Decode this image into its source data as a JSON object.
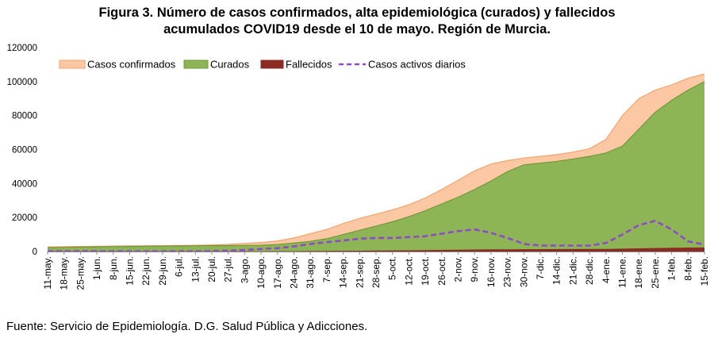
{
  "title_line1": "Figura 3. Número de casos confirmados, alta epidemiológica (curados) y fallecidos",
  "title_line2": "acumulados COVID19 desde el 10 de mayo. Región de Murcia.",
  "source": "Fuente: Servicio de Epidemiología. D.G. Salud Pública y Adicciones.",
  "colors": {
    "confirmados_fill": "#fbc8a3",
    "confirmados_line": "#f5a36c",
    "curados": "#8db556",
    "curados_line": "#6f9a3a",
    "fallecidos": "#8b2c24",
    "activos": "#8e4ac8"
  },
  "chart_data": {
    "type": "area",
    "xlabel": "",
    "ylabel": "",
    "ylim": [
      0,
      120000
    ],
    "yticks": [
      0,
      20000,
      40000,
      60000,
      80000,
      100000,
      120000
    ],
    "grid": false,
    "legend_position": "top-left",
    "categories": [
      "11-may.",
      "18-may.",
      "25-may.",
      "1-jun.",
      "8-jun.",
      "15-jun.",
      "22-jun.",
      "29-jun.",
      "6-jul.",
      "13-jul.",
      "20-jul.",
      "27-jul.",
      "3-ago.",
      "10-ago.",
      "17-ago.",
      "24-ago.",
      "31-ago.",
      "7-sep.",
      "14-sep.",
      "21-sep.",
      "28-sep.",
      "5-oct.",
      "12-oct.",
      "19-oct.",
      "26-oct.",
      "2-nov.",
      "9-nov.",
      "16-nov.",
      "23-nov.",
      "30-nov.",
      "7-dic.",
      "14-dic.",
      "21-dic.",
      "28-dic.",
      "4-ene.",
      "11-ene.",
      "18-ene.",
      "25-ene.",
      "1-feb.",
      "8-feb.",
      "15-feb."
    ],
    "series": [
      {
        "name": "Casos confirmados",
        "style": "area",
        "values": [
          2700,
          2850,
          3000,
          3100,
          3200,
          3300,
          3400,
          3450,
          3550,
          3700,
          3900,
          4200,
          4700,
          5300,
          6200,
          8000,
          10500,
          13000,
          16500,
          19500,
          22000,
          24500,
          27500,
          31500,
          36500,
          42000,
          47500,
          51500,
          53500,
          55000,
          56000,
          57000,
          58500,
          60500,
          66000,
          80000,
          90000,
          95000,
          98000,
          102000,
          104500
        ]
      },
      {
        "name": "Curados",
        "style": "area",
        "values": [
          2300,
          2450,
          2600,
          2750,
          2900,
          3000,
          3100,
          3200,
          3300,
          3400,
          3450,
          3500,
          3600,
          3700,
          4100,
          5000,
          6000,
          7500,
          10000,
          12500,
          15000,
          17500,
          20500,
          24000,
          28000,
          32000,
          36500,
          41500,
          47000,
          51000,
          52000,
          53000,
          54500,
          56000,
          58000,
          62000,
          72000,
          82000,
          89000,
          95000,
          100000
        ]
      },
      {
        "name": "Fallecidos",
        "style": "area",
        "values": [
          140,
          145,
          148,
          150,
          150,
          150,
          150,
          150,
          150,
          150,
          150,
          150,
          155,
          160,
          170,
          200,
          260,
          330,
          400,
          480,
          560,
          640,
          720,
          820,
          930,
          1050,
          1150,
          1250,
          1300,
          1350,
          1400,
          1430,
          1460,
          1500,
          1560,
          1680,
          1860,
          2050,
          2200,
          2320,
          2400
        ]
      },
      {
        "name": "Casos activos diarios",
        "style": "dashed-line",
        "values": [
          200,
          200,
          200,
          200,
          150,
          150,
          150,
          150,
          150,
          150,
          300,
          500,
          900,
          1500,
          2000,
          3000,
          4500,
          5500,
          6500,
          7500,
          8000,
          8000,
          8500,
          9000,
          10500,
          12000,
          13000,
          11000,
          8000,
          4500,
          3500,
          3500,
          3500,
          3500,
          5000,
          10000,
          15500,
          18000,
          13000,
          6000,
          4000
        ]
      }
    ]
  }
}
